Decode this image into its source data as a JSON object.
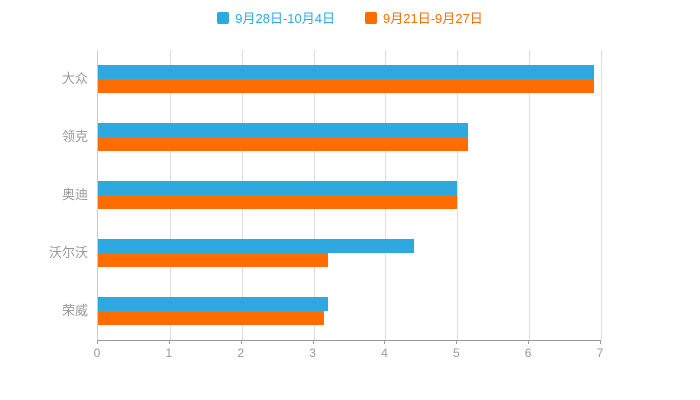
{
  "legend": [
    {
      "label": "9月28日-10月4日",
      "color": "#2EA9E0"
    },
    {
      "label": "9月21日-9月27日",
      "color": "#FF6D00"
    }
  ],
  "chart_data": {
    "type": "bar",
    "orientation": "horizontal",
    "title": "",
    "xlabel": "",
    "ylabel": "",
    "categories": [
      "大众",
      "领克",
      "奥迪",
      "沃尔沃",
      "荣威"
    ],
    "series": [
      {
        "name": "9月28日-10月4日",
        "color": "#2EA9E0",
        "values": [
          6.9,
          5.15,
          5.0,
          4.4,
          3.2
        ]
      },
      {
        "name": "9月21日-9月27日",
        "color": "#FF6D00",
        "values": [
          6.9,
          5.15,
          5.0,
          3.2,
          3.15
        ]
      }
    ],
    "xlim": [
      0,
      7
    ],
    "x_ticks": [
      0,
      1,
      2,
      3,
      4,
      5,
      6,
      7
    ],
    "grid": true,
    "legend_position": "top",
    "background": "#ffffff"
  }
}
